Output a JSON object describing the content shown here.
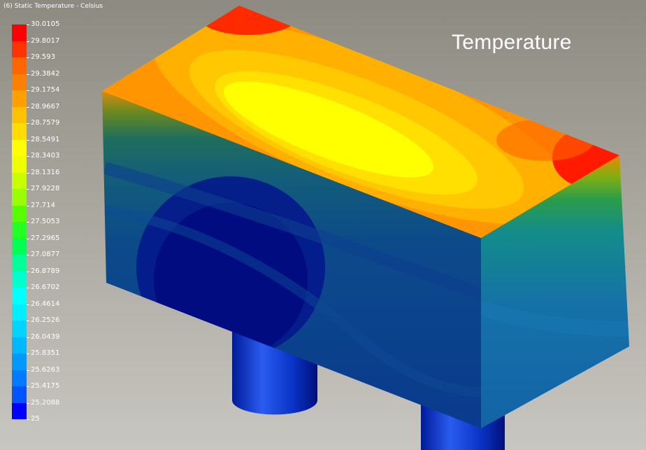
{
  "legend": {
    "title": "(6) Static Temperature - Celsius",
    "labels": [
      "30.0105",
      "29.8017",
      "29.593",
      "29.3842",
      "29.1754",
      "28.9667",
      "28.7579",
      "28.5491",
      "28.3403",
      "28.1316",
      "27.9228",
      "27.714",
      "27.5053",
      "27.2965",
      "27.0877",
      "26.8789",
      "26.6702",
      "26.4614",
      "26.2526",
      "26.0439",
      "25.8351",
      "25.6263",
      "25.4175",
      "25.2088",
      "25"
    ],
    "colors": [
      "#ff0000",
      "#ff3300",
      "#ff6600",
      "#ff8000",
      "#ffa000",
      "#ffc000",
      "#ffdd00",
      "#ffff00",
      "#eeff00",
      "#c8ff00",
      "#99ff00",
      "#55ff00",
      "#22ff22",
      "#00ff55",
      "#00ff99",
      "#00ffcc",
      "#00ffff",
      "#00eeff",
      "#00d4ff",
      "#00b8ff",
      "#0099ff",
      "#007aff",
      "#0055ff",
      "#0000ff"
    ]
  },
  "overlay": {
    "title": "Temperature"
  },
  "colors": {
    "accent_hot": "#ff0000",
    "accent_cold": "#0000ff",
    "background": "#a9a69e"
  }
}
